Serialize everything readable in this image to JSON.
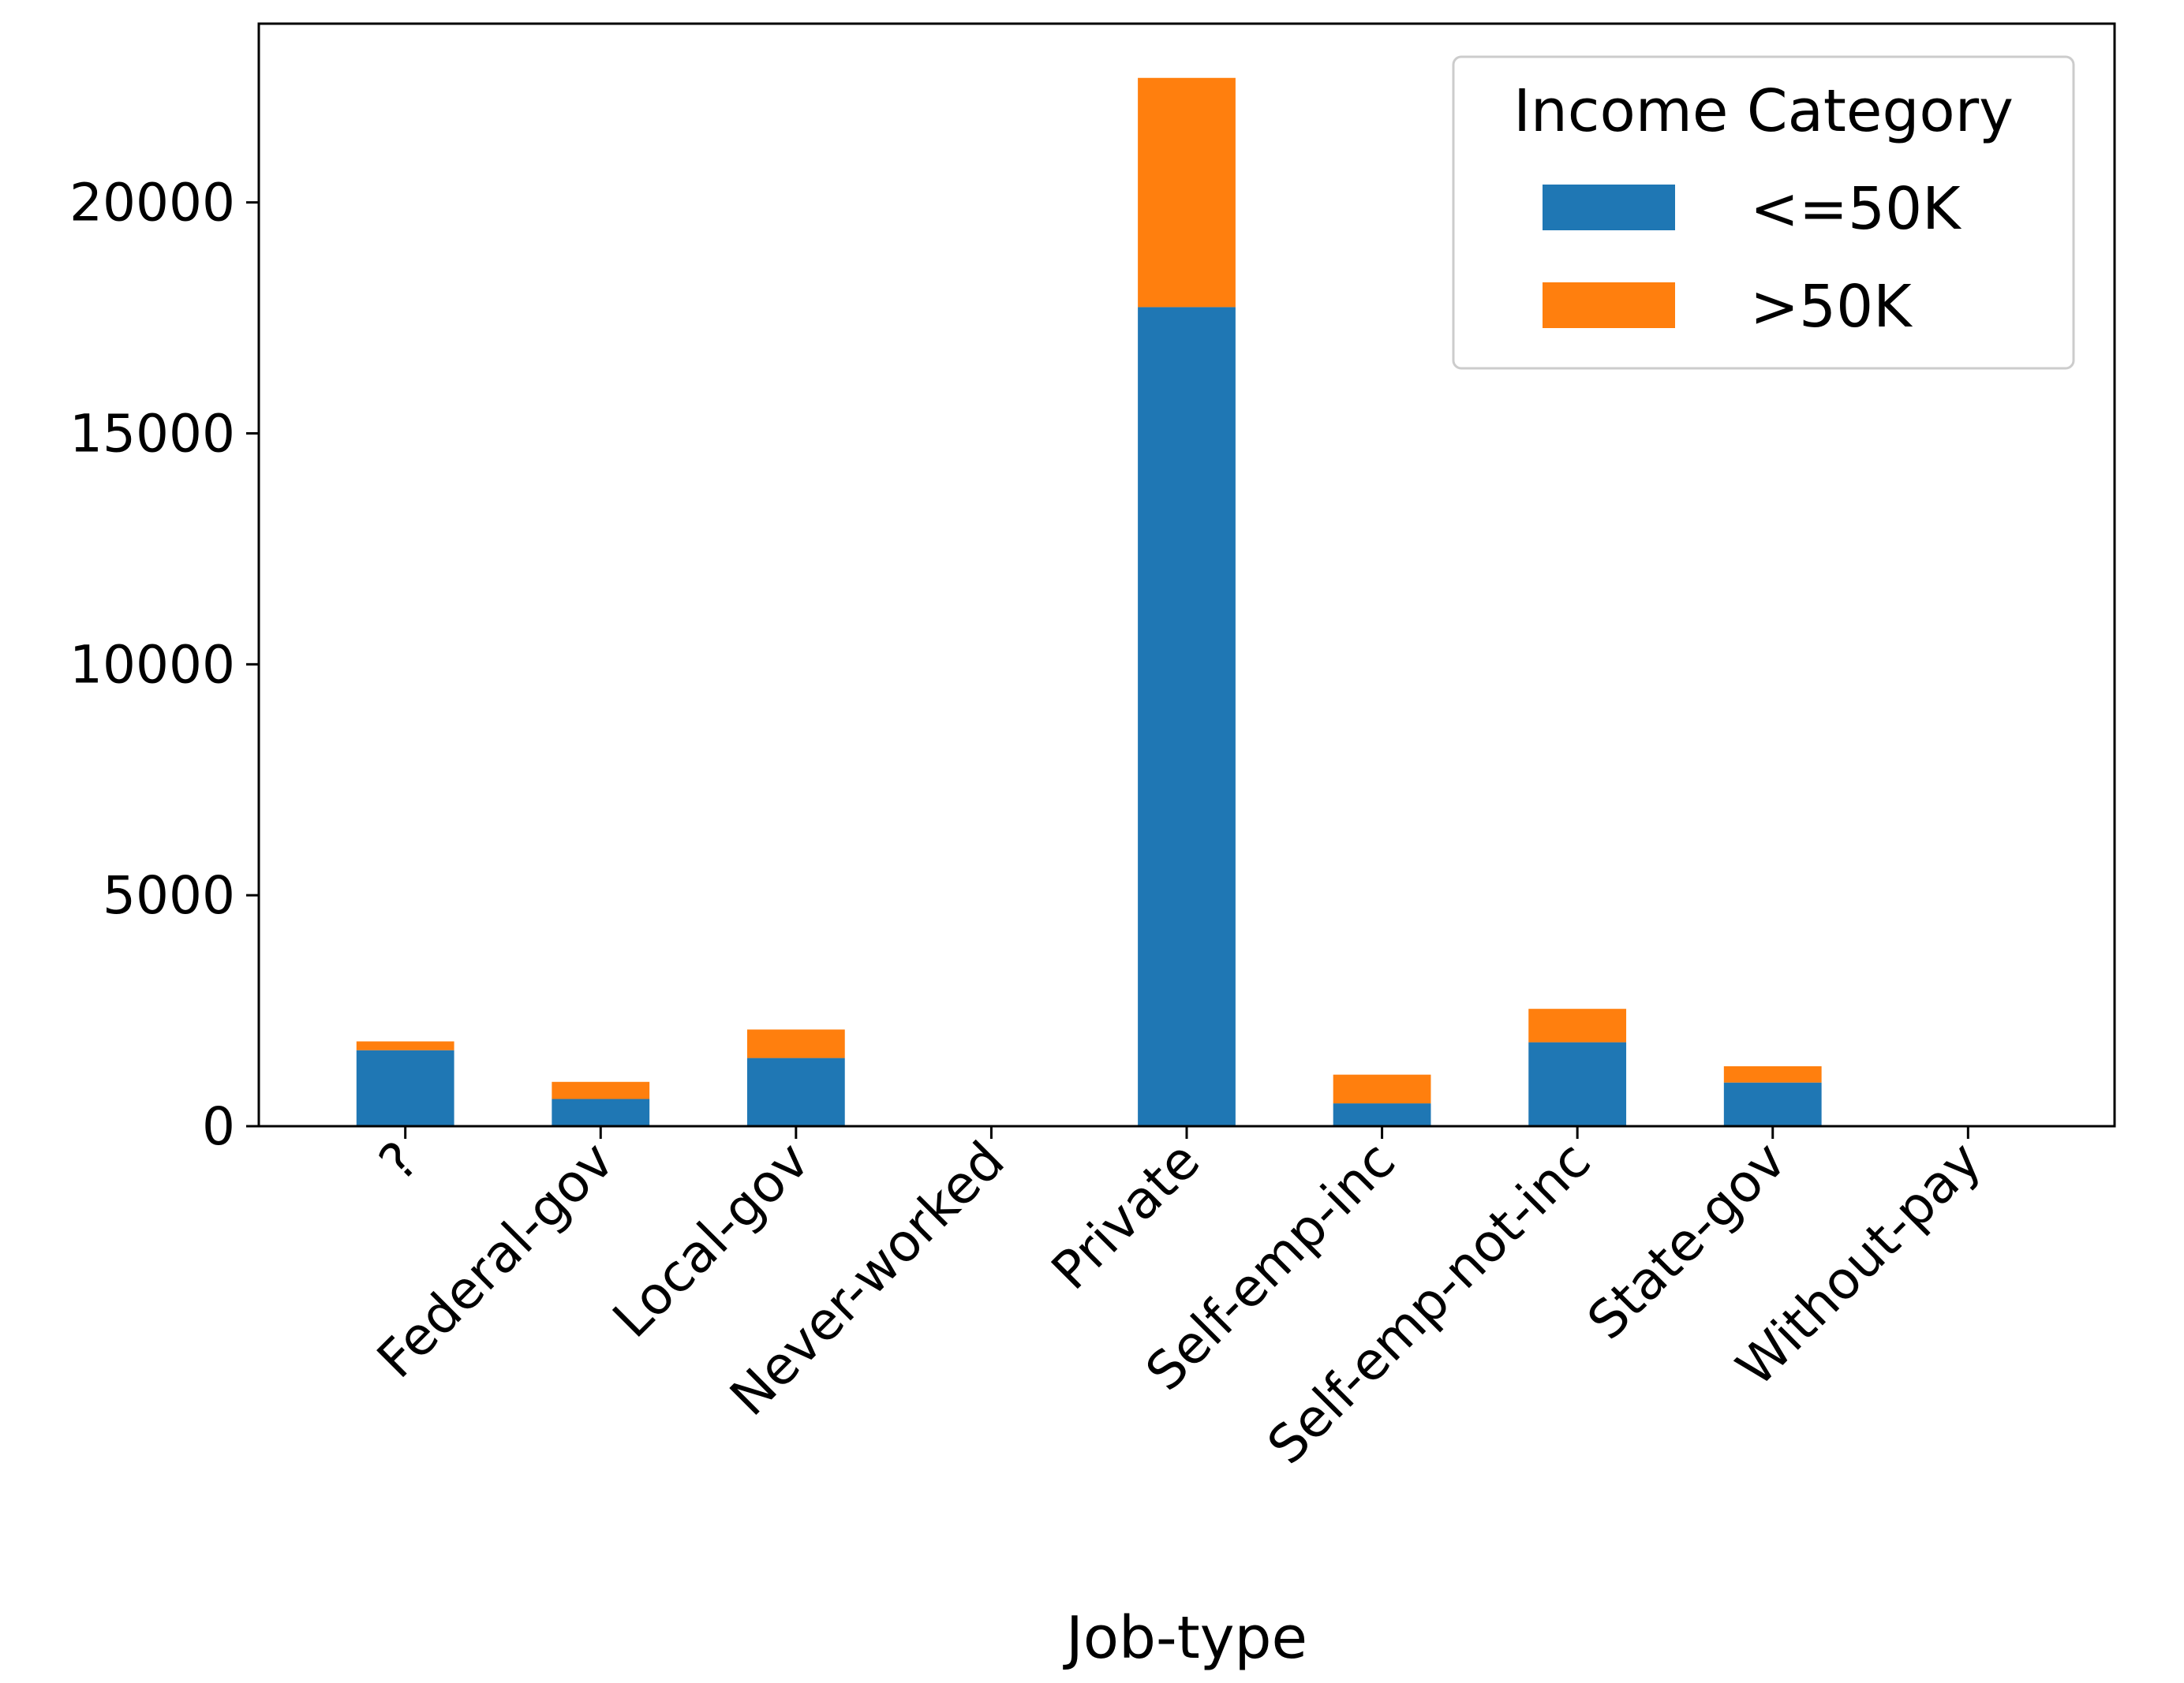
{
  "chart_data": {
    "type": "bar",
    "stacked": true,
    "title": "",
    "xlabel": "Job-type",
    "ylabel": "",
    "categories": [
      "?",
      "Federal-gov",
      "Local-gov",
      "Never-worked",
      "Private",
      "Self-emp-inc",
      "Self-emp-not-inc",
      "State-gov",
      "Without-pay"
    ],
    "series": [
      {
        "name": "<=50K",
        "color": "#1f77b4",
        "values": [
          1645,
          589,
          1476,
          7,
          17733,
          494,
          1817,
          945,
          14
        ]
      },
      {
        "name": ">50K",
        "color": "#ff7f0e",
        "values": [
          191,
          371,
          617,
          0,
          4963,
          622,
          724,
          353,
          0
        ]
      }
    ],
    "ylim": [
      0,
      23870
    ],
    "yticks": [
      0,
      5000,
      10000,
      15000,
      20000
    ],
    "xtick_rotation": 45,
    "grid": false,
    "legend": {
      "title": "Income Category",
      "placement": "top-right"
    }
  }
}
